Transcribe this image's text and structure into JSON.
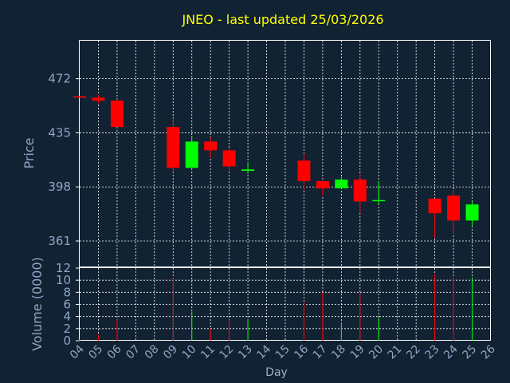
{
  "colors": {
    "background": "#112233",
    "panel_border": "#ffffff",
    "grid": "#ffffff",
    "up": "#00ff00",
    "down": "#ff0000",
    "title": "#ffff00",
    "axis_text": "#8fa6c6"
  },
  "chart_data": [
    {
      "type": "candlestick",
      "title": "JNEO - last updated 25/03/2026",
      "ylabel": "Price",
      "ylim": [
        343,
        498
      ],
      "yticks": [
        361,
        398,
        435,
        472
      ],
      "grid": true,
      "candles": [
        {
          "day": "04",
          "open": 460,
          "high": 460,
          "low": 459,
          "close": 459
        },
        {
          "day": "05",
          "open": 459,
          "high": 461,
          "low": 455,
          "close": 457
        },
        {
          "day": "06",
          "open": 457,
          "high": 458,
          "low": 439,
          "close": 439
        },
        {
          "day": "09",
          "open": 439,
          "high": 445,
          "low": 408,
          "close": 411
        },
        {
          "day": "10",
          "open": 411,
          "high": 433,
          "low": 411,
          "close": 429
        },
        {
          "day": "11",
          "open": 429,
          "high": 432,
          "low": 418,
          "close": 423
        },
        {
          "day": "12",
          "open": 423,
          "high": 425,
          "low": 409,
          "close": 412
        },
        {
          "day": "13",
          "open": 409,
          "high": 415,
          "low": 407,
          "close": 410
        },
        {
          "day": "16",
          "open": 416,
          "high": 421,
          "low": 396,
          "close": 402
        },
        {
          "day": "17",
          "open": 402,
          "high": 402,
          "low": 392,
          "close": 397
        },
        {
          "day": "18",
          "open": 397,
          "high": 405,
          "low": 397,
          "close": 403
        },
        {
          "day": "19",
          "open": 403,
          "high": 407,
          "low": 380,
          "close": 388
        },
        {
          "day": "20",
          "open": 389,
          "high": 402,
          "low": 386,
          "close": 389
        },
        {
          "day": "23",
          "open": 390,
          "high": 390,
          "low": 363,
          "close": 380
        },
        {
          "day": "24",
          "open": 392,
          "high": 396,
          "low": 366,
          "close": 375
        },
        {
          "day": "25",
          "open": 375,
          "high": 388,
          "low": 371,
          "close": 386
        }
      ]
    },
    {
      "type": "bar",
      "ylabel": "Volume (0000)",
      "xlabel": "Day",
      "ylim": [
        0,
        12
      ],
      "yticks": [
        0,
        2,
        4,
        6,
        8,
        10,
        12
      ],
      "x_ticks": [
        "04",
        "05",
        "06",
        "07",
        "08",
        "09",
        "10",
        "11",
        "12",
        "13",
        "14",
        "15",
        "16",
        "17",
        "18",
        "19",
        "20",
        "21",
        "22",
        "23",
        "24",
        "25",
        "26"
      ],
      "grid": true,
      "bars": [
        {
          "day": "04",
          "value": 0.2,
          "direction": "down"
        },
        {
          "day": "05",
          "value": 1.0,
          "direction": "down"
        },
        {
          "day": "06",
          "value": 3.5,
          "direction": "down"
        },
        {
          "day": "09",
          "value": 10.5,
          "direction": "down"
        },
        {
          "day": "10",
          "value": 4.8,
          "direction": "up"
        },
        {
          "day": "11",
          "value": 2.0,
          "direction": "down"
        },
        {
          "day": "12",
          "value": 3.5,
          "direction": "down"
        },
        {
          "day": "13",
          "value": 3.5,
          "direction": "up"
        },
        {
          "day": "16",
          "value": 6.5,
          "direction": "down"
        },
        {
          "day": "17",
          "value": 8.0,
          "direction": "down"
        },
        {
          "day": "18",
          "value": 3.0,
          "direction": "up"
        },
        {
          "day": "19",
          "value": 8.0,
          "direction": "down"
        },
        {
          "day": "20",
          "value": 3.8,
          "direction": "up"
        },
        {
          "day": "23",
          "value": 11.0,
          "direction": "down"
        },
        {
          "day": "24",
          "value": 10.5,
          "direction": "down"
        },
        {
          "day": "25",
          "value": 10.5,
          "direction": "up"
        }
      ]
    }
  ]
}
